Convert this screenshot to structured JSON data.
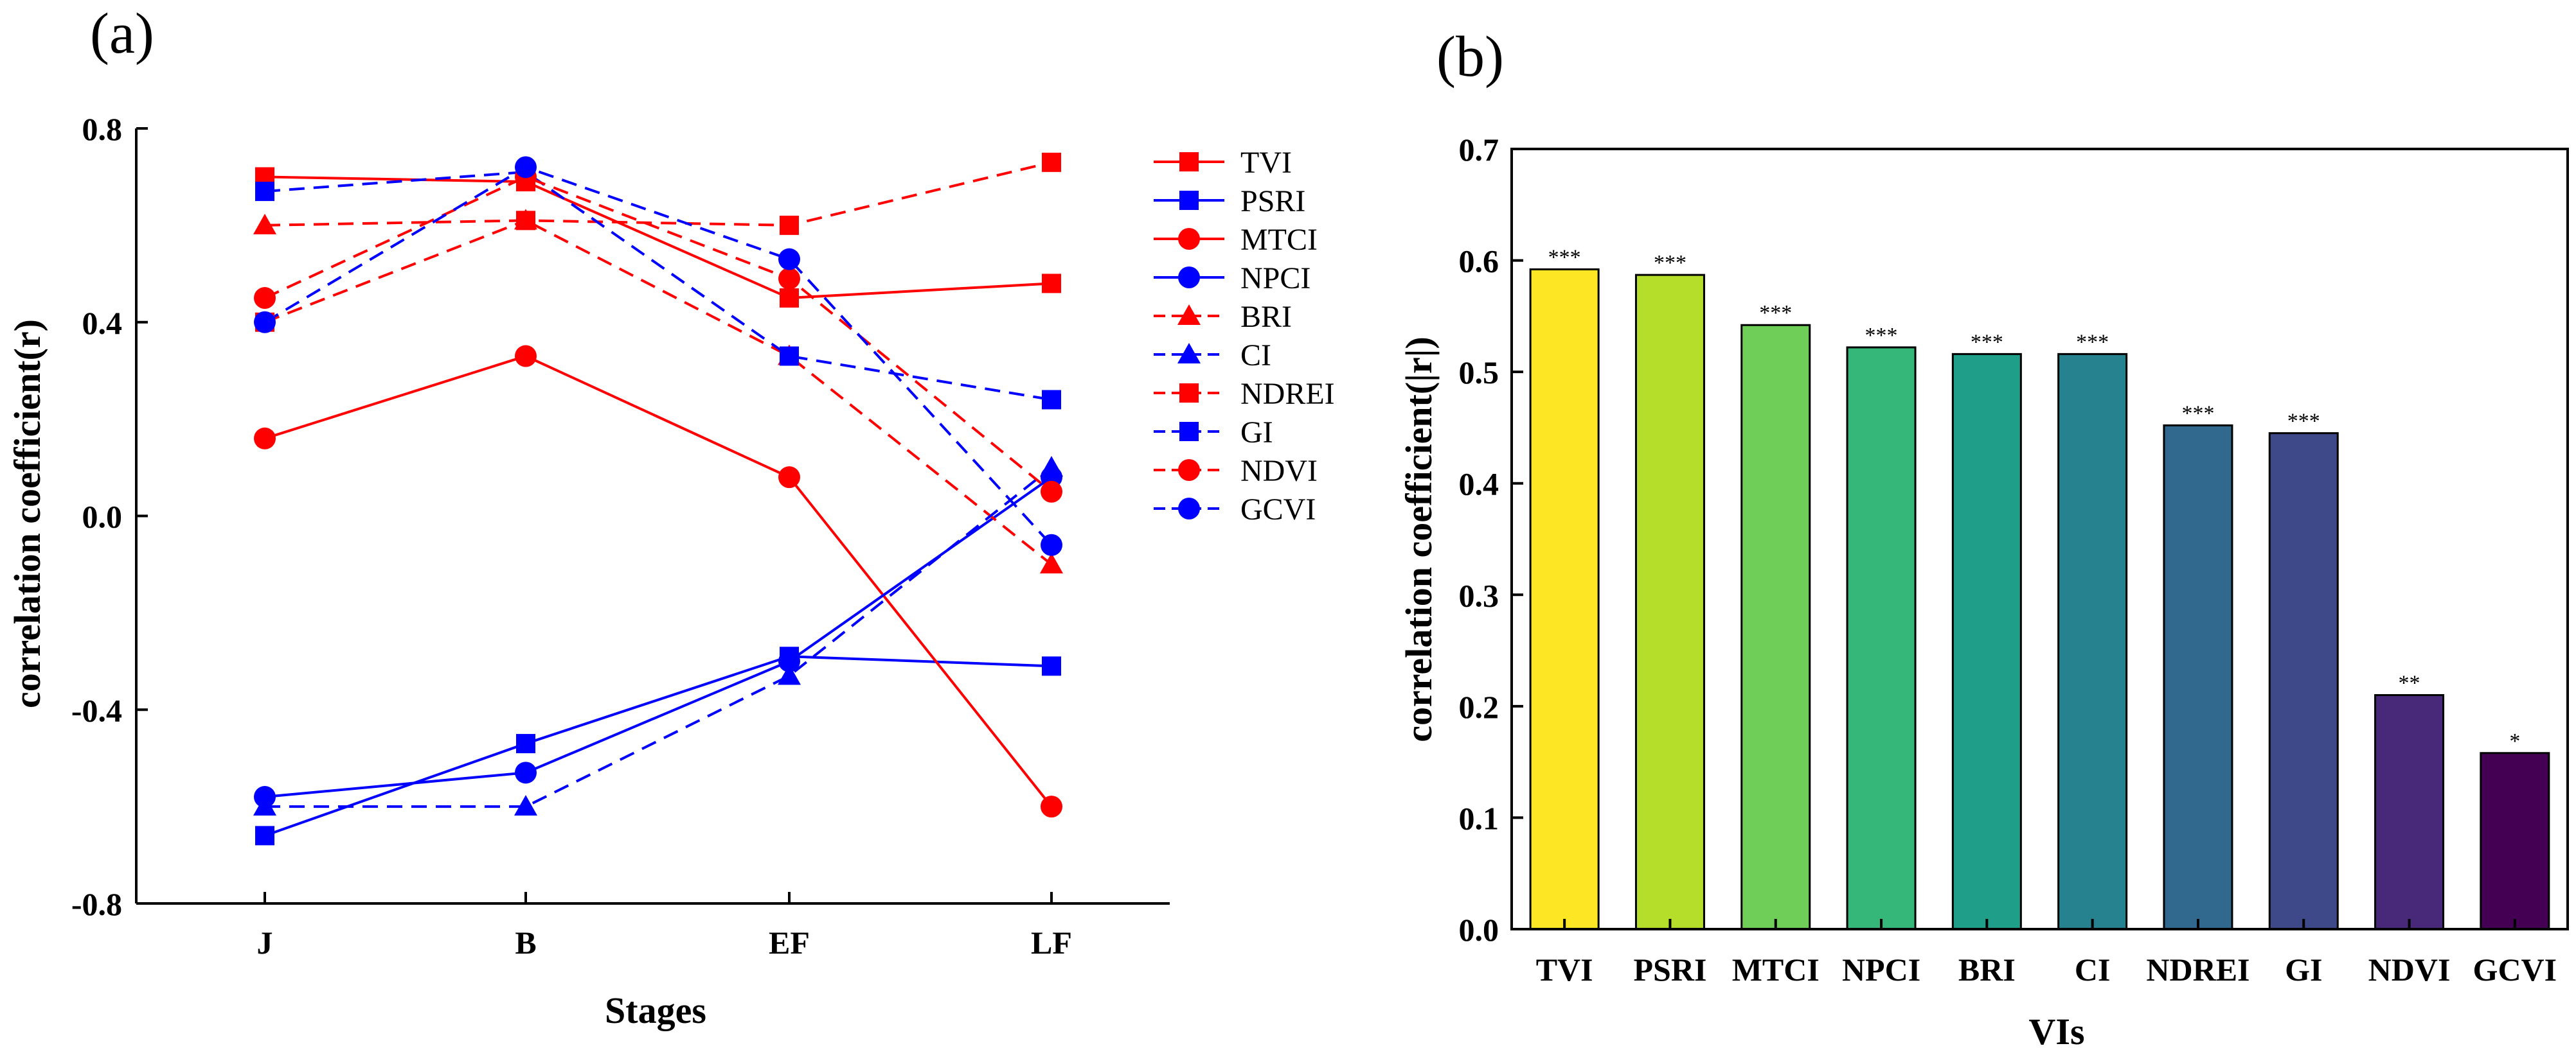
{
  "chart_data": [
    {
      "panel_label": "(a)",
      "type": "line",
      "title": "",
      "xlabel": "Stages",
      "ylabel": "correlation coefficient(r)",
      "categories": [
        "J",
        "B",
        "EF",
        "LF"
      ],
      "ylim": [
        -0.8,
        0.8
      ],
      "yticks": [
        "-0.8",
        "-0.4",
        "0.0",
        "0.4",
        "0.8"
      ],
      "ytick_values": [
        -0.8,
        -0.4,
        0.0,
        0.4,
        0.8
      ],
      "grid": false,
      "legend_position": "right",
      "series": [
        {
          "name": "TVI",
          "color": "#ff0000",
          "dash": "solid",
          "marker": "square",
          "values": [
            0.7,
            0.69,
            0.45,
            0.48
          ]
        },
        {
          "name": "PSRI",
          "color": "#0000ff",
          "dash": "solid",
          "marker": "square",
          "values": [
            -0.66,
            -0.47,
            -0.29,
            -0.31
          ]
        },
        {
          "name": "MTCI",
          "color": "#ff0000",
          "dash": "solid",
          "marker": "circle",
          "values": [
            0.16,
            0.33,
            0.08,
            -0.6
          ]
        },
        {
          "name": "NPCI",
          "color": "#0000ff",
          "dash": "solid",
          "marker": "circle",
          "values": [
            -0.58,
            -0.53,
            -0.3,
            0.08
          ]
        },
        {
          "name": "BRI",
          "color": "#ff0000",
          "dash": "dashed",
          "marker": "triangle",
          "values": [
            0.6,
            0.61,
            0.33,
            -0.1
          ]
        },
        {
          "name": "CI",
          "color": "#0000ff",
          "dash": "dashed",
          "marker": "triangle",
          "values": [
            -0.6,
            -0.6,
            -0.33,
            0.1
          ]
        },
        {
          "name": "NDREI",
          "color": "#ff0000",
          "dash": "dashed",
          "marker": "square",
          "values": [
            0.4,
            0.61,
            0.6,
            0.73
          ]
        },
        {
          "name": "GI",
          "color": "#0000ff",
          "dash": "dashed",
          "marker": "square",
          "values": [
            0.67,
            0.71,
            0.33,
            0.24
          ]
        },
        {
          "name": "NDVI",
          "color": "#ff0000",
          "dash": "dashed",
          "marker": "circle",
          "values": [
            0.45,
            0.7,
            0.49,
            0.05
          ]
        },
        {
          "name": "GCVI",
          "color": "#0000ff",
          "dash": "dashed",
          "marker": "circle",
          "values": [
            0.4,
            0.72,
            0.53,
            -0.06
          ]
        }
      ]
    },
    {
      "panel_label": "(b)",
      "type": "bar",
      "title": "",
      "xlabel": "VIs",
      "ylabel": "correlation coefficient(|r|)",
      "categories": [
        "TVI",
        "PSRI",
        "MTCI",
        "NPCI",
        "BRI",
        "CI",
        "NDREI",
        "GI",
        "NDVI",
        "GCVI"
      ],
      "values": [
        0.592,
        0.587,
        0.542,
        0.522,
        0.516,
        0.516,
        0.452,
        0.445,
        0.21,
        0.158
      ],
      "significance": [
        "***",
        "***",
        "***",
        "***",
        "***",
        "***",
        "***",
        "***",
        "**",
        "*"
      ],
      "colors": [
        "#fde725",
        "#b5de2b",
        "#6ece58",
        "#35b779",
        "#1f9e89",
        "#26828e",
        "#31688e",
        "#3e4989",
        "#482878",
        "#440154"
      ],
      "ylim": [
        0.0,
        0.7
      ],
      "yticks": [
        "0.0",
        "0.1",
        "0.2",
        "0.3",
        "0.4",
        "0.5",
        "0.6",
        "0.7"
      ],
      "ytick_values": [
        0.0,
        0.1,
        0.2,
        0.3,
        0.4,
        0.5,
        0.6,
        0.7
      ],
      "grid": false
    }
  ]
}
